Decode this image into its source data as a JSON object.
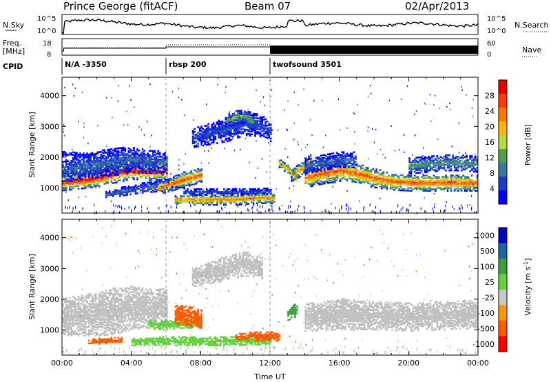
{
  "header": {
    "station": "Prince George (fitACF)",
    "beam": "Beam 07",
    "date": "02/Apr/2013"
  },
  "status_panels": {
    "nsky_label": "N.Sky",
    "nsky_ticks": [
      "10^5",
      "10^0"
    ],
    "nsearch_label": "N.Search",
    "nsearch_ticks": [
      "10^5",
      "10^0"
    ],
    "freq_label": "Freq.",
    "freq_unit": "[MHz]",
    "freq_ticks": [
      "18",
      "8"
    ],
    "nave_label": "Nave",
    "nave_ticks": [
      "60",
      "0"
    ],
    "cpid_label": "CPID",
    "cpid_segments": [
      {
        "label": "N/A -3350",
        "start_hour": 0
      },
      {
        "label": "rbsp 200",
        "start_hour": 6
      },
      {
        "label": "twofsound 3501",
        "start_hour": 12
      }
    ]
  },
  "colors": {
    "scale_power": [
      "#0000ff",
      "#1e3cc8",
      "#3c78a0",
      "#50a050",
      "#b4dc3c",
      "#ffb400",
      "#ff7800",
      "#ff3c00",
      "#e60000"
    ],
    "scale_velocity": [
      "#ff0000",
      "#ff5a00",
      "#ff9600",
      "#c8c8c8",
      "#64d23c",
      "#3ca03c",
      "#1e64a0",
      "#0000c8"
    ],
    "ground_scatter": "#c0c0c0"
  },
  "chart_data": [
    {
      "type": "heatmap",
      "name": "power",
      "xlabel": "",
      "ylabel": "Slant Range [km]",
      "xlim": [
        0,
        24
      ],
      "ylim": [
        180,
        4600
      ],
      "yticks": [
        1000,
        2000,
        3000,
        4000
      ],
      "colorbar": {
        "label": "Power [dB]",
        "range": [
          0,
          32
        ],
        "tick_labels": [
          "4",
          "8",
          "12",
          "16",
          "20",
          "24",
          "28"
        ]
      },
      "bands": [
        {
          "x": [
            0,
            1,
            2,
            3,
            4,
            5,
            6
          ],
          "y_center": [
            1150,
            1220,
            1300,
            1450,
            1550,
            1500,
            1500
          ],
          "width": [
            250,
            260,
            280,
            300,
            280,
            260,
            250
          ],
          "peak_db": 30
        },
        {
          "x": [
            0,
            1,
            2,
            3,
            4,
            5,
            6
          ],
          "y_center": [
            1550,
            1650,
            1750,
            1850,
            1900,
            1850,
            1800
          ],
          "width": [
            350,
            380,
            420,
            450,
            420,
            380,
            350
          ],
          "peak_db": 8
        },
        {
          "x": [
            0,
            0.5,
            1,
            1.5,
            2
          ],
          "y_center": [
            2100,
            2100,
            2050,
            2050,
            2000
          ],
          "width": [
            80,
            80,
            80,
            80,
            80
          ],
          "peak_db": 4
        },
        {
          "x": [
            2.5,
            3.5,
            4.5,
            5.5,
            6.2,
            7
          ],
          "y_center": [
            750,
            880,
            980,
            1050,
            1120,
            1180
          ],
          "width": [
            120,
            140,
            160,
            180,
            200,
            220
          ],
          "peak_db": 8
        },
        {
          "x": [
            5.5,
            6.2,
            7,
            8
          ],
          "y_center": [
            950,
            1100,
            1250,
            1400
          ],
          "width": [
            180,
            220,
            250,
            220
          ],
          "peak_db": 26
        },
        {
          "x": [
            6.5,
            7.5,
            8.5,
            10,
            11,
            12.2
          ],
          "y_center": [
            600,
            600,
            600,
            600,
            650,
            650
          ],
          "width": [
            150,
            160,
            170,
            170,
            170,
            160
          ],
          "peak_db": 24
        },
        {
          "x": [
            7,
            8,
            9,
            10,
            11,
            12
          ],
          "y_center": [
            850,
            850,
            850,
            850,
            850,
            880
          ],
          "width": [
            90,
            90,
            90,
            90,
            90,
            90
          ],
          "peak_db": 6
        },
        {
          "x": [
            7.5,
            8.5,
            9.5,
            10.5,
            11.5,
            12
          ],
          "y_center": [
            2600,
            2750,
            2900,
            3100,
            3000,
            2800
          ],
          "width": [
            300,
            350,
            400,
            400,
            350,
            300
          ],
          "peak_db": 6
        },
        {
          "x": [
            9.5,
            10,
            10.5,
            11
          ],
          "y_center": [
            3150,
            3300,
            3300,
            3150
          ],
          "width": [
            200,
            220,
            200,
            180
          ],
          "peak_db": 14
        },
        {
          "x": [
            13.2,
            13.8,
            14.3
          ],
          "y_center": [
            1400,
            1600,
            1900
          ],
          "width": [
            200,
            220,
            240
          ],
          "peak_db": 22
        },
        {
          "x": [
            12.5,
            13.1,
            13.5
          ],
          "y_center": [
            1800,
            1550,
            1300
          ],
          "width": [
            150,
            150,
            150
          ],
          "peak_db": 22
        },
        {
          "x": [
            14,
            15,
            16,
            17,
            18,
            19,
            20,
            21,
            22,
            23,
            24
          ],
          "y_center": [
            1300,
            1450,
            1550,
            1450,
            1300,
            1200,
            1150,
            1150,
            1150,
            1150,
            1150
          ],
          "width": [
            300,
            330,
            350,
            330,
            300,
            280,
            260,
            260,
            260,
            260,
            260
          ],
          "peak_db": 26
        },
        {
          "x": [
            14,
            15,
            16,
            17
          ],
          "y_center": [
            1700,
            1800,
            1900,
            1900
          ],
          "width": [
            250,
            250,
            250,
            250
          ],
          "peak_db": 8
        },
        {
          "x": [
            20,
            21,
            22,
            23,
            24
          ],
          "y_center": [
            1700,
            1750,
            1800,
            1800,
            1750
          ],
          "width": [
            250,
            250,
            250,
            250,
            250
          ],
          "peak_db": 12
        }
      ]
    },
    {
      "type": "heatmap",
      "name": "velocity",
      "xlabel": "Time UT",
      "ylabel": "Slant Range [km]",
      "xlim": [
        0,
        24
      ],
      "ylim": [
        180,
        4600
      ],
      "yticks": [
        1000,
        2000,
        3000,
        4000
      ],
      "xtick_labels": [
        "00:00",
        "04:00",
        "08:00",
        "12:00",
        "16:00",
        "20:00",
        "00:00"
      ],
      "colorbar": {
        "label": "Velocity [m s",
        "label_superscript": "-1",
        "label_end": "]",
        "tick_labels": [
          "1000",
          "500",
          "100",
          "25",
          "-25",
          "-100",
          "-500",
          "-1000"
        ]
      },
      "bands": [
        {
          "x": [
            0,
            1,
            2,
            3,
            4,
            5,
            6
          ],
          "y_center": [
            1400,
            1450,
            1500,
            1600,
            1700,
            1700,
            1700
          ],
          "width": [
            600,
            650,
            700,
            750,
            700,
            650,
            600
          ],
          "v": 0,
          "gs": true
        },
        {
          "x": [
            5,
            6,
            7,
            8
          ],
          "y_center": [
            1150,
            1150,
            1200,
            1200
          ],
          "width": [
            150,
            150,
            150,
            150
          ],
          "v": 60
        },
        {
          "x": [
            6.5,
            7,
            7.5,
            8
          ],
          "y_center": [
            1500,
            1450,
            1400,
            1350
          ],
          "width": [
            300,
            320,
            320,
            300
          ],
          "v": -300
        },
        {
          "x": [
            1.5,
            2.5,
            3.5
          ],
          "y_center": [
            600,
            650,
            650
          ],
          "width": [
            100,
            100,
            100
          ],
          "v": -200
        },
        {
          "x": [
            4,
            6,
            8,
            10,
            11,
            12
          ],
          "y_center": [
            600,
            620,
            620,
            620,
            650,
            650
          ],
          "width": [
            120,
            140,
            140,
            140,
            140,
            140
          ],
          "v": 50
        },
        {
          "x": [
            10,
            11,
            12,
            12.5
          ],
          "y_center": [
            750,
            780,
            780,
            750
          ],
          "width": [
            120,
            140,
            140,
            120
          ],
          "v": -200
        },
        {
          "x": [
            7.5,
            8.5,
            9.5,
            10.5,
            11.5
          ],
          "y_center": [
            2700,
            2850,
            3000,
            3150,
            3000
          ],
          "width": [
            300,
            350,
            400,
            400,
            350
          ],
          "v": 0,
          "gs": true
        },
        {
          "x": [
            13,
            13.5
          ],
          "y_center": [
            1500,
            1650
          ],
          "width": [
            200,
            220
          ],
          "v": 150
        },
        {
          "x": [
            14,
            16,
            18,
            20,
            22,
            24
          ],
          "y_center": [
            1400,
            1500,
            1450,
            1400,
            1450,
            1500
          ],
          "width": [
            450,
            500,
            450,
            450,
            450,
            450
          ],
          "v": 0,
          "gs": true
        }
      ]
    }
  ]
}
